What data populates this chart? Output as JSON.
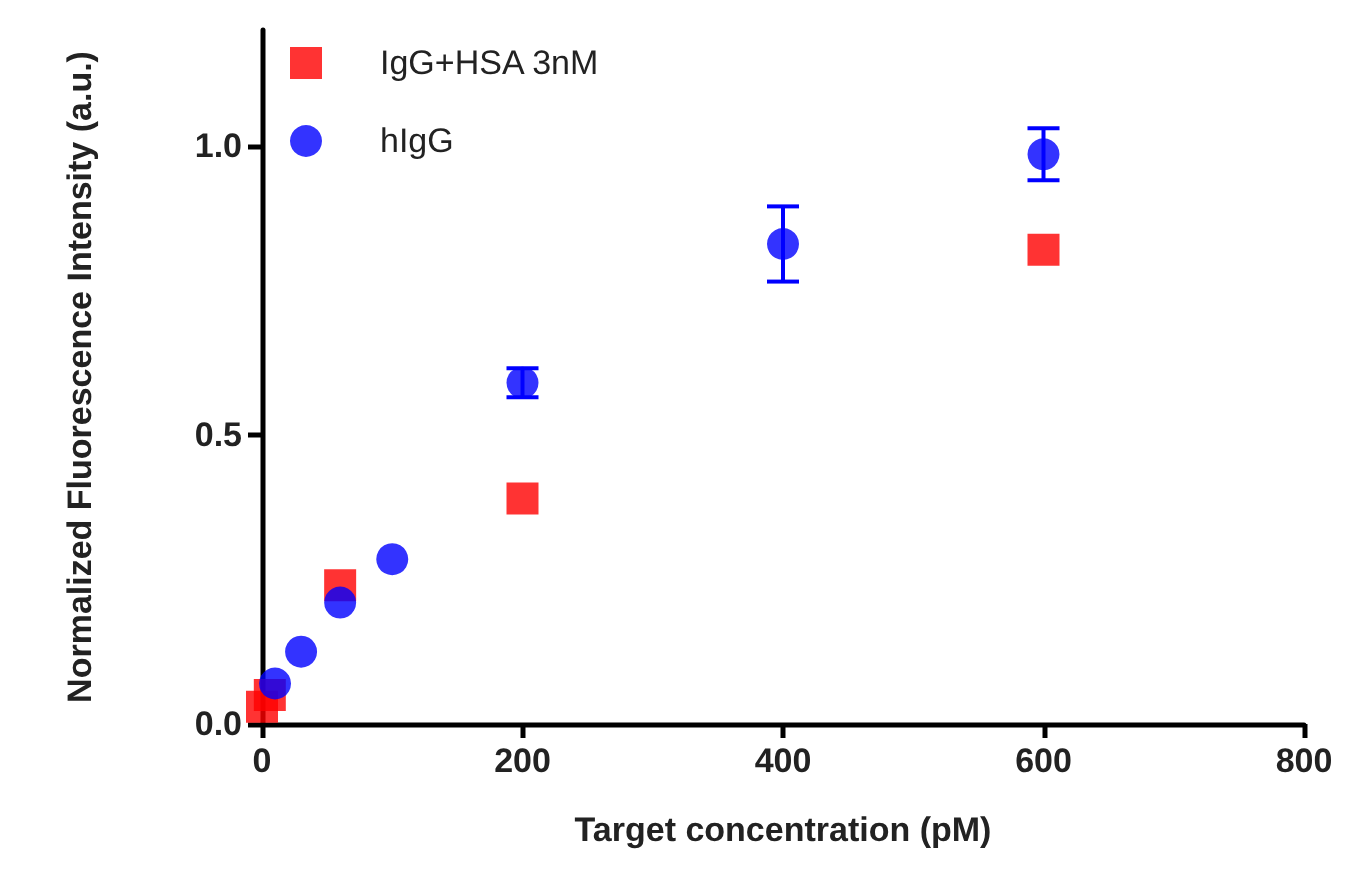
{
  "chart_data": {
    "type": "scatter",
    "xlabel": "Target concentration (pM)",
    "ylabel": "Normalized Fluorescence Intensity (a.u.)",
    "xlim": [
      0,
      800
    ],
    "xticks": [
      0,
      200,
      400,
      600,
      800
    ],
    "ylim": [
      0,
      1.2
    ],
    "yticks": [
      {
        "value": 0,
        "label": "0.0"
      },
      {
        "value": 0.5,
        "label": "0.5"
      },
      {
        "value": 1,
        "label": "1.0"
      }
    ],
    "grid": false,
    "legend": "top left",
    "series": [
      {
        "name": "IgG+HSA 3nM",
        "color": "#ff0000",
        "marker": "square",
        "x": [
          0,
          6,
          60,
          200,
          600
        ],
        "values": [
          0.03,
          0.05,
          0.24,
          0.39,
          0.82
        ]
      },
      {
        "name": "hIgG",
        "color": "#0000ff",
        "marker": "circle",
        "x": [
          10,
          30,
          60,
          100,
          200,
          400,
          600
        ],
        "values": [
          0.07,
          0.125,
          0.21,
          0.285,
          0.59,
          0.83,
          0.985
        ],
        "errors": [
          null,
          null,
          null,
          null,
          0.025,
          0.065,
          0.045
        ]
      }
    ]
  }
}
